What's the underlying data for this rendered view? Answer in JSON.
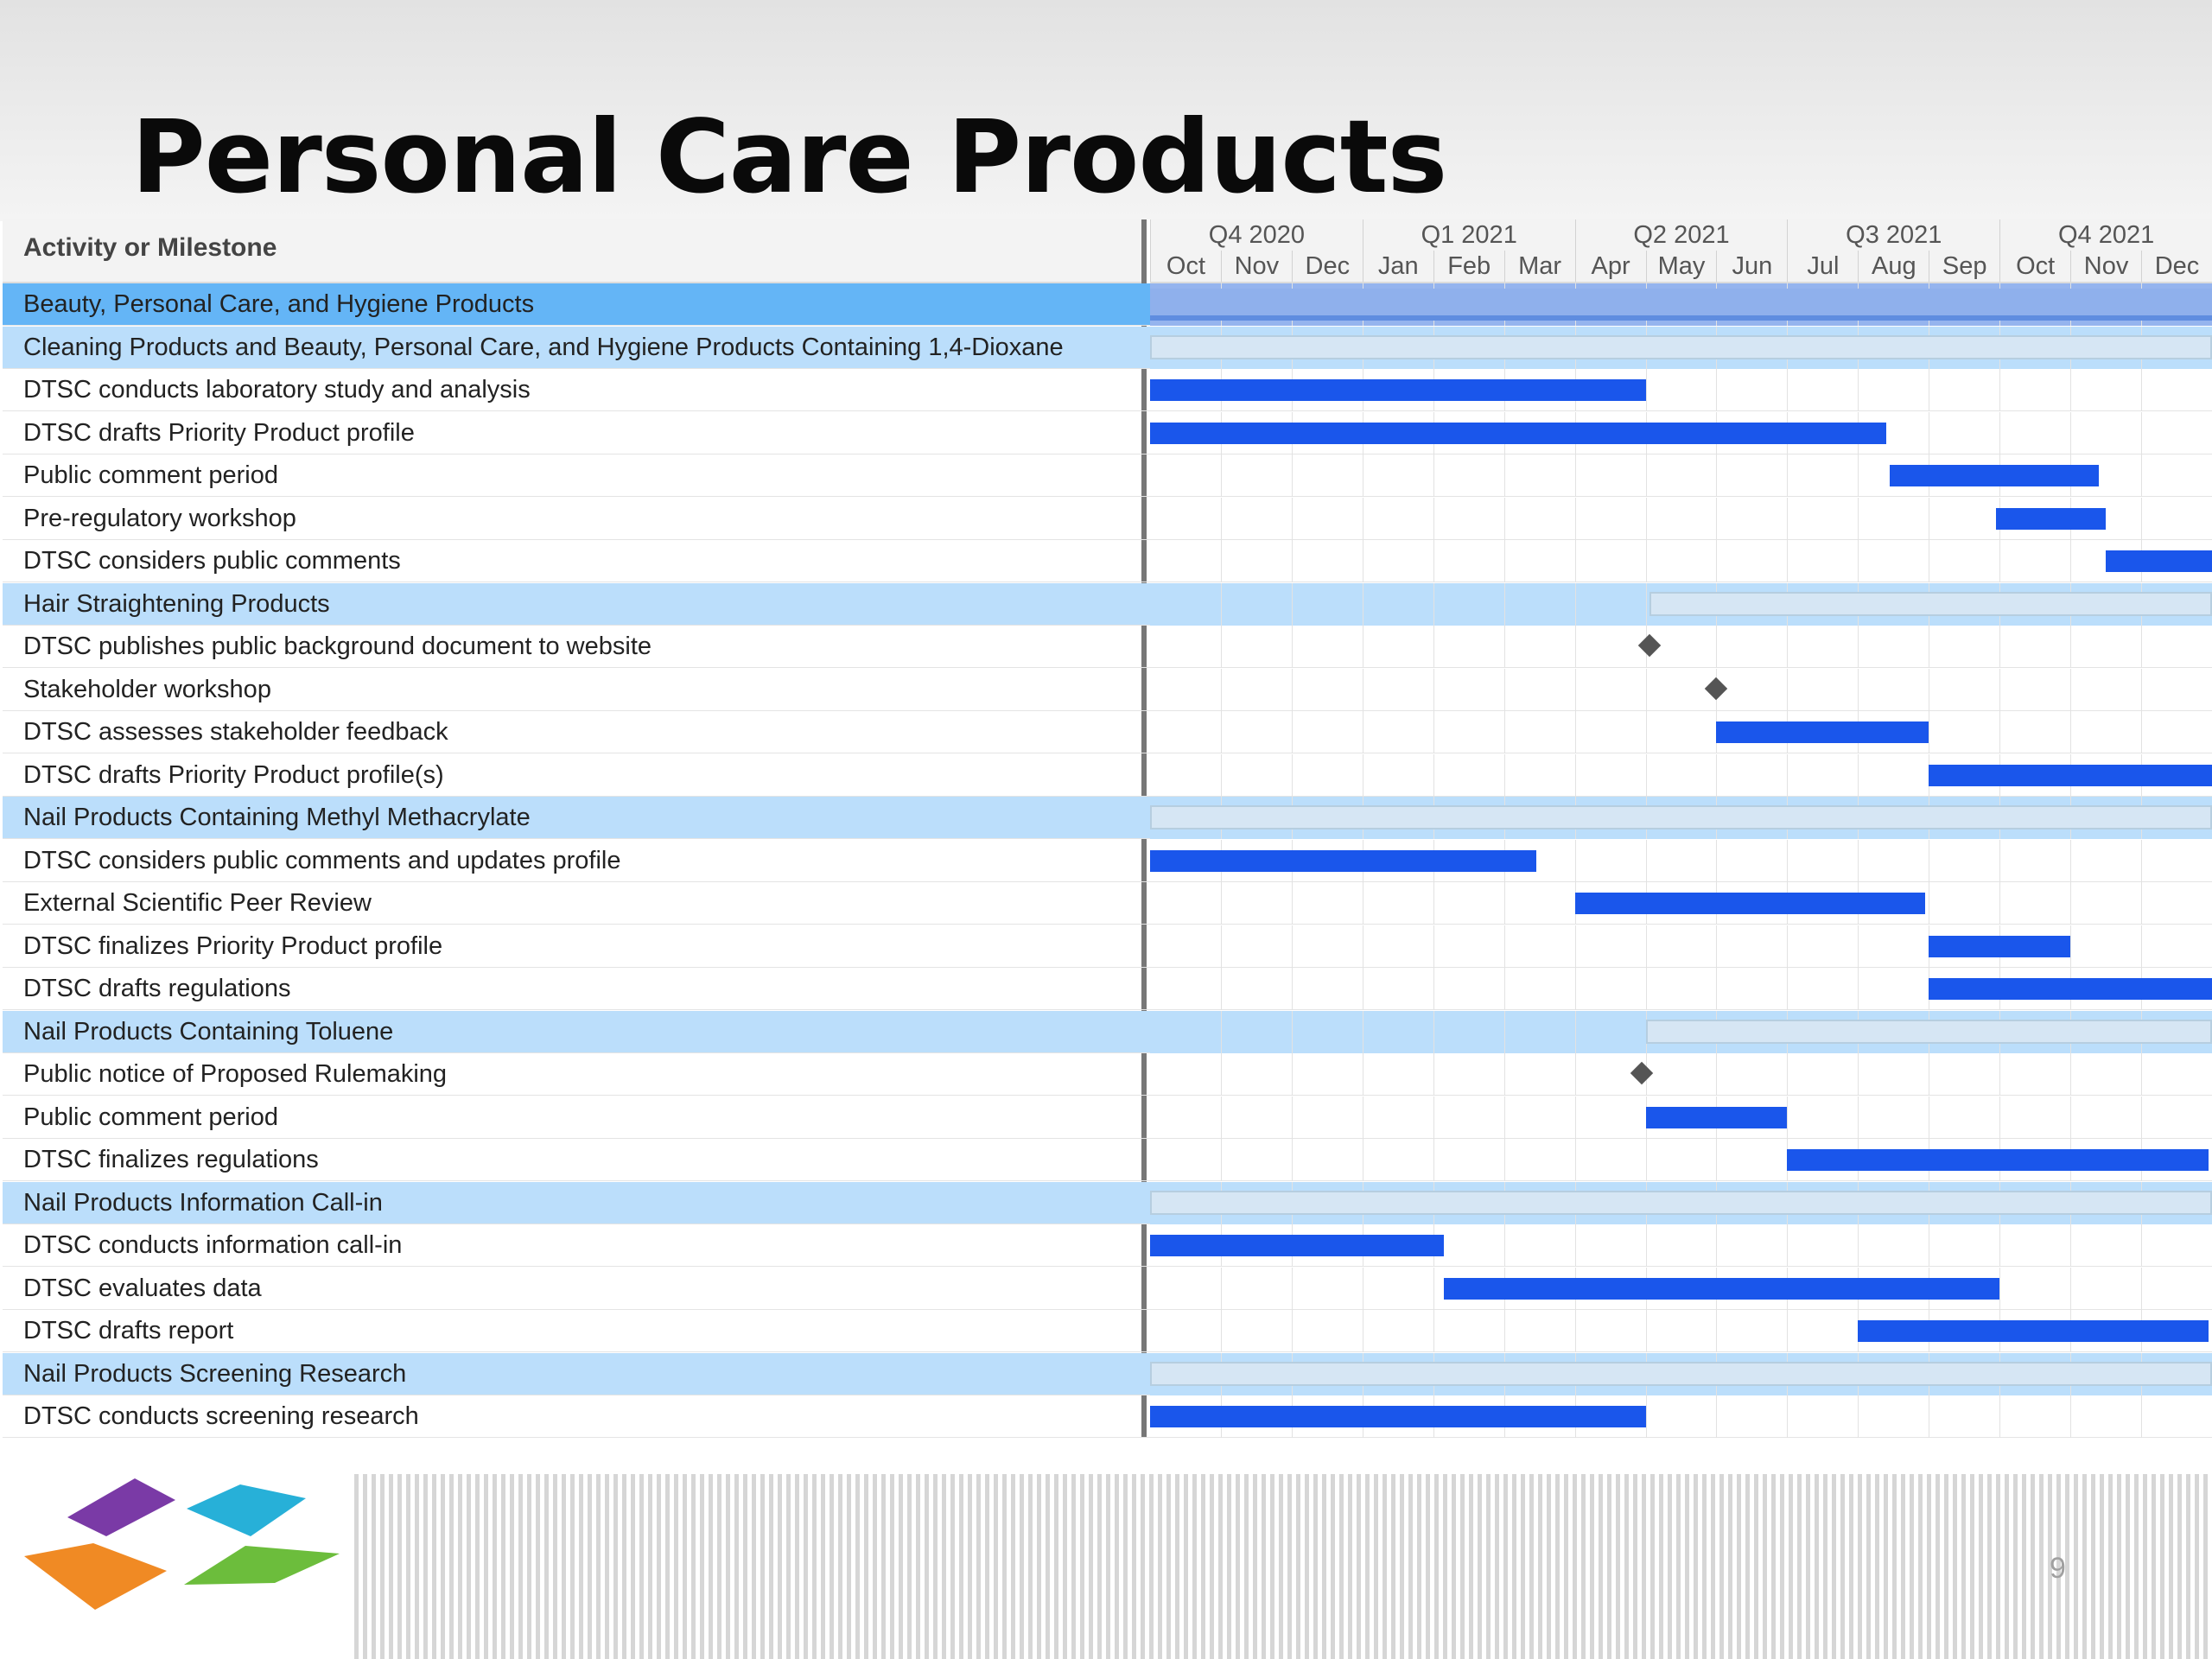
{
  "title": "Personal Care Products",
  "table_header": "Activity or Milestone",
  "quarters": [
    "Q4 2020",
    "Q1 2021",
    "Q2 2021",
    "Q3 2021",
    "Q4 2021"
  ],
  "months": [
    "Oct",
    "Nov",
    "Dec",
    "Jan",
    "Feb",
    "Mar",
    "Apr",
    "May",
    "Jun",
    "Jul",
    "Aug",
    "Sep",
    "Oct",
    "Nov",
    "Dec"
  ],
  "rows": [
    {
      "label": "Beauty, Personal Care, and Hygiene Products",
      "kind": "group-active",
      "start": 0,
      "end": 15
    },
    {
      "label": "Cleaning Products and Beauty, Personal Care, and Hygiene Products Containing 1,4-Dioxane",
      "kind": "group",
      "start": 0,
      "end": 15
    },
    {
      "label": "DTSC conducts laboratory study and analysis",
      "kind": "task",
      "start": 0,
      "end": 7
    },
    {
      "label": "DTSC drafts Priority Product profile",
      "kind": "task",
      "start": 0,
      "end": 10.4
    },
    {
      "label": "Public comment period",
      "kind": "task",
      "start": 10.45,
      "end": 13.4
    },
    {
      "label": "Pre-regulatory workshop",
      "kind": "task",
      "start": 11.95,
      "end": 13.5
    },
    {
      "label": "DTSC considers public comments",
      "kind": "task",
      "start": 13.5,
      "end": 15
    },
    {
      "label": "Hair Straightening Products",
      "kind": "group",
      "start": 7.05,
      "end": 15
    },
    {
      "label": "DTSC publishes public background document to website",
      "kind": "milestone",
      "at": 7.05
    },
    {
      "label": "Stakeholder workshop",
      "kind": "milestone",
      "at": 8.0
    },
    {
      "label": "DTSC assesses stakeholder feedback",
      "kind": "task",
      "start": 8.0,
      "end": 11.0
    },
    {
      "label": "DTSC drafts Priority Product profile(s)",
      "kind": "task",
      "start": 11.0,
      "end": 15
    },
    {
      "label": "Nail Products Containing Methyl Methacrylate",
      "kind": "group",
      "start": 0,
      "end": 15
    },
    {
      "label": "DTSC considers public comments and updates profile",
      "kind": "task",
      "start": 0,
      "end": 5.45
    },
    {
      "label": "External Scientific Peer Review",
      "kind": "task",
      "start": 6.0,
      "end": 10.95
    },
    {
      "label": "DTSC finalizes Priority Product profile",
      "kind": "task",
      "start": 11.0,
      "end": 13.0
    },
    {
      "label": "DTSC drafts regulations",
      "kind": "task",
      "start": 11.0,
      "end": 15
    },
    {
      "label": "Nail Products Containing Toluene",
      "kind": "group",
      "start": 7.0,
      "end": 15
    },
    {
      "label": "Public notice of Proposed Rulemaking",
      "kind": "milestone",
      "at": 6.95
    },
    {
      "label": "Public comment period",
      "kind": "task",
      "start": 7.0,
      "end": 9.0
    },
    {
      "label": "DTSC finalizes regulations",
      "kind": "task",
      "start": 9.0,
      "end": 14.95
    },
    {
      "label": "Nail Products Information Call-in",
      "kind": "group",
      "start": 0,
      "end": 15
    },
    {
      "label": "DTSC conducts information call-in",
      "kind": "task",
      "start": 0,
      "end": 4.15
    },
    {
      "label": "DTSC evaluates data",
      "kind": "task",
      "start": 4.15,
      "end": 12.0
    },
    {
      "label": "DTSC drafts report",
      "kind": "task",
      "start": 10.0,
      "end": 14.95
    },
    {
      "label": "Nail Products Screening Research",
      "kind": "group",
      "start": 0,
      "end": 15
    },
    {
      "label": "DTSC conducts screening research",
      "kind": "task",
      "start": 0,
      "end": 7.0
    }
  ],
  "page_number": "9",
  "colors": {
    "bar": "#1a56eb",
    "group_row": "#bbdefb",
    "active_row": "#64b5f6",
    "summary_bar": "#d6e6f4",
    "milestone": "#555555"
  },
  "logo": {
    "icon": "four-diamond-logo-icon",
    "colors": [
      "#7a3aa6",
      "#27b0d8",
      "#f08a24",
      "#6cbd3c"
    ]
  }
}
